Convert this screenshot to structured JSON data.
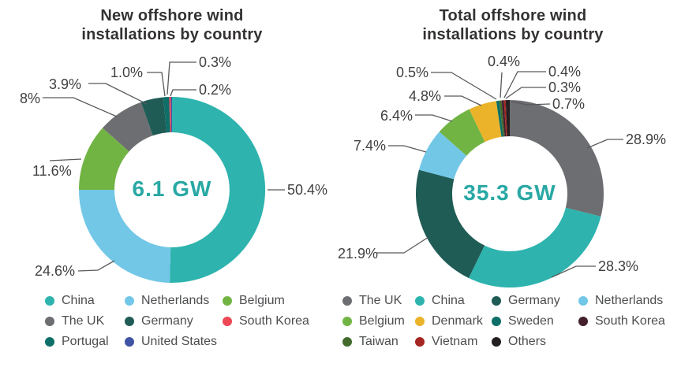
{
  "colors": {
    "title": "#333132",
    "pct_label": "#414042",
    "legend_text": "#4d4e50",
    "leader_line": "#58595b",
    "center_value": "#29a8a4",
    "background": "#ffffff"
  },
  "chart_data": [
    {
      "type": "donut",
      "title_line1": "New offshore wind",
      "title_line2": "installations by country",
      "center_label": "6.1 GW",
      "value_unit": "%",
      "slices": [
        {
          "name": "China",
          "value": 50.4,
          "label": "50.4%",
          "color": "#2eb3ae"
        },
        {
          "name": "Netherlands",
          "value": 24.6,
          "label": "24.6%",
          "color": "#72c7e7"
        },
        {
          "name": "Belgium",
          "value": 11.6,
          "label": "11.6%",
          "color": "#72b444"
        },
        {
          "name": "The UK",
          "value": 8.0,
          "label": "8%",
          "color": "#6d6e71"
        },
        {
          "name": "Germany",
          "value": 3.9,
          "label": "3.9%",
          "color": "#1f5c55"
        },
        {
          "name": "Portugal",
          "value": 1.0,
          "label": "1.0%",
          "color": "#0d6f68"
        },
        {
          "name": "South Korea",
          "value": 0.3,
          "label": "0.3%",
          "color": "#ee4756"
        },
        {
          "name": "United States",
          "value": 0.2,
          "label": "0.2%",
          "color": "#4053a4"
        }
      ],
      "legend_columns": 3,
      "legend": [
        {
          "name": "China",
          "color": "#2eb3ae"
        },
        {
          "name": "Netherlands",
          "color": "#72c7e7"
        },
        {
          "name": "Belgium",
          "color": "#72b444"
        },
        {
          "name": "The UK",
          "color": "#6d6e71"
        },
        {
          "name": "Germany",
          "color": "#1f5c55"
        },
        {
          "name": "South Korea",
          "color": "#ee4756"
        },
        {
          "name": "Portugal",
          "color": "#0d6f68"
        },
        {
          "name": "United States",
          "color": "#4053a4"
        }
      ]
    },
    {
      "type": "donut",
      "title_line1": "Total offshore wind",
      "title_line2": "installations by country",
      "center_label": "35.3 GW",
      "value_unit": "%",
      "slices": [
        {
          "name": "The UK",
          "value": 28.9,
          "label": "28.9%",
          "color": "#6d6e71"
        },
        {
          "name": "China",
          "value": 28.3,
          "label": "28.3%",
          "color": "#2eb3ae"
        },
        {
          "name": "Germany",
          "value": 21.9,
          "label": "21.9%",
          "color": "#1f5c55"
        },
        {
          "name": "Netherlands",
          "value": 7.4,
          "label": "7.4%",
          "color": "#72c7e7"
        },
        {
          "name": "Belgium",
          "value": 6.4,
          "label": "6.4%",
          "color": "#72b444"
        },
        {
          "name": "Denmark",
          "value": 4.8,
          "label": "4.8%",
          "color": "#eab32a"
        },
        {
          "name": "Sweden",
          "value": 0.5,
          "label": "0.5%",
          "color": "#0d6f68"
        },
        {
          "name": "Taiwan",
          "value": 0.4,
          "label": "0.4%",
          "color": "#426b2d"
        },
        {
          "name": "South Korea",
          "value": 0.4,
          "label": "0.4%",
          "color": "#44202c"
        },
        {
          "name": "Vietnam",
          "value": 0.3,
          "label": "0.3%",
          "color": "#a52622"
        },
        {
          "name": "Others",
          "value": 0.7,
          "label": "0.7%",
          "color": "#231f20"
        }
      ],
      "legend_columns": 4,
      "legend": [
        {
          "name": "The UK",
          "color": "#6d6e71"
        },
        {
          "name": "China",
          "color": "#2eb3ae"
        },
        {
          "name": "Germany",
          "color": "#1f5c55"
        },
        {
          "name": "Netherlands",
          "color": "#72c7e7"
        },
        {
          "name": "Belgium",
          "color": "#72b444"
        },
        {
          "name": "Denmark",
          "color": "#eab32a"
        },
        {
          "name": "Sweden",
          "color": "#0d6f68"
        },
        {
          "name": "South Korea",
          "color": "#44202c"
        },
        {
          "name": "Taiwan",
          "color": "#426b2d"
        },
        {
          "name": "Vietnam",
          "color": "#a52622"
        },
        {
          "name": "Others",
          "color": "#231f20"
        }
      ]
    }
  ]
}
